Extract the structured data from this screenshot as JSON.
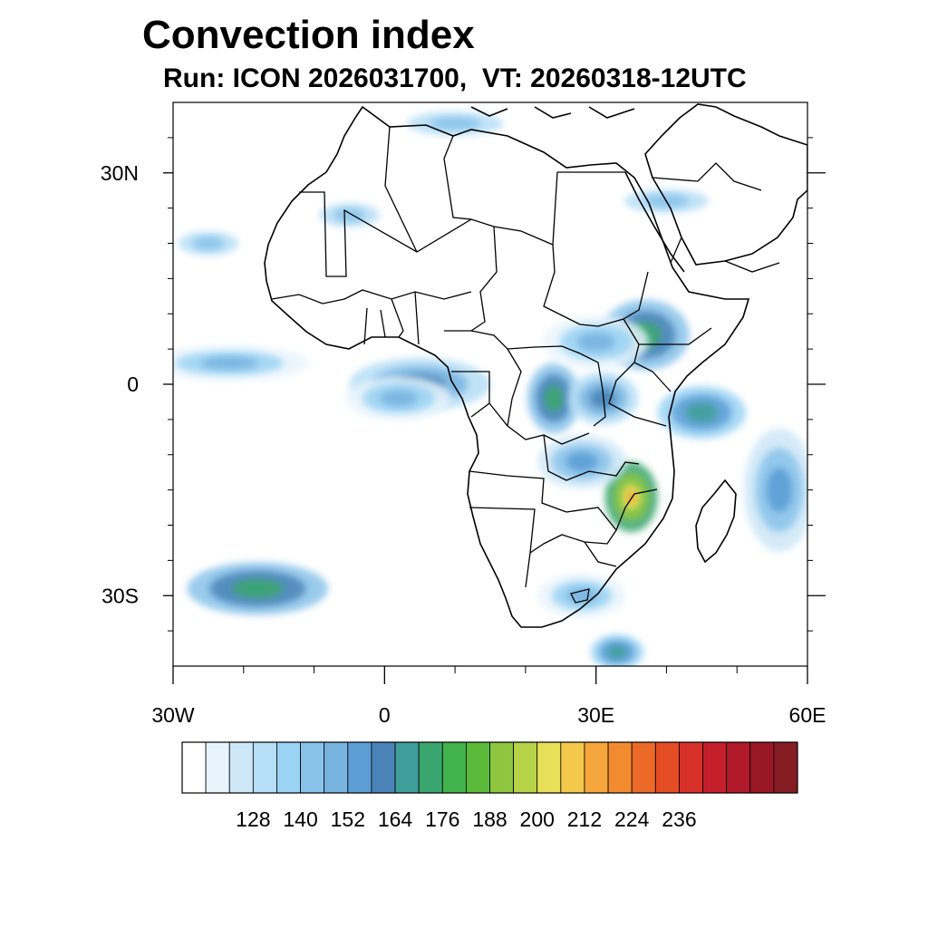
{
  "title": "Convection index",
  "subtitle": "Run: ICON 2026031700,  VT: 20260318-12UTC",
  "map": {
    "lon_range": [
      -30,
      60
    ],
    "lat_range": [
      -40,
      40
    ],
    "lat_ticks": [
      {
        "lat": 30,
        "label": "30N"
      },
      {
        "lat": 0,
        "label": "0"
      },
      {
        "lat": -30,
        "label": "30S"
      }
    ],
    "lon_ticks": [
      {
        "lon": -30,
        "label": "30W"
      },
      {
        "lon": 0,
        "label": "0"
      },
      {
        "lon": 30,
        "label": "30E"
      },
      {
        "lon": 60,
        "label": "60E"
      }
    ],
    "field_regions": [
      {
        "name": "equatorial-west-africa",
        "lon": 5,
        "lat": 0,
        "rx": 8,
        "ry": 3,
        "level": 160
      },
      {
        "name": "gulf-of-guinea",
        "lon": 2,
        "lat": -2,
        "rx": 6,
        "ry": 2.5,
        "level": 150
      },
      {
        "name": "central-congo",
        "lon": 24,
        "lat": -2,
        "rx": 3,
        "ry": 4,
        "level": 170
      },
      {
        "name": "lake-victoria",
        "lon": 31,
        "lat": -2,
        "rx": 4,
        "ry": 3,
        "level": 160
      },
      {
        "name": "ethiopia",
        "lon": 37,
        "lat": 7,
        "rx": 5,
        "ry": 4,
        "level": 170
      },
      {
        "name": "south-sudan",
        "lon": 30,
        "lat": 6,
        "rx": 6,
        "ry": 3,
        "level": 150
      },
      {
        "name": "mozambique-malawi",
        "lon": 35,
        "lat": -16,
        "rx": 3,
        "ry": 4,
        "level": 200
      },
      {
        "name": "zambia",
        "lon": 28,
        "lat": -11,
        "rx": 5,
        "ry": 3,
        "level": 155
      },
      {
        "name": "indian-ocean-east",
        "lon": 45,
        "lat": -4,
        "rx": 5,
        "ry": 3,
        "level": 165
      },
      {
        "name": "south-atlantic",
        "lon": -18,
        "lat": -29,
        "rx": 8,
        "ry": 3,
        "level": 175
      },
      {
        "name": "tropical-atlantic",
        "lon": -22,
        "lat": 3,
        "rx": 9,
        "ry": 2,
        "level": 150
      },
      {
        "name": "saharan-north",
        "lon": -5,
        "lat": 24,
        "rx": 5,
        "ry": 2,
        "level": 140
      },
      {
        "name": "red-sea-arabia",
        "lon": 40,
        "lat": 26,
        "rx": 7,
        "ry": 2,
        "level": 145
      },
      {
        "name": "madagascar-east",
        "lon": 56,
        "lat": -15,
        "rx": 4,
        "ry": 7,
        "level": 155
      },
      {
        "name": "south-africa",
        "lon": 28,
        "lat": -30,
        "rx": 5,
        "ry": 2.5,
        "level": 150
      },
      {
        "name": "mozambique-channel-south",
        "lon": 33,
        "lat": -38,
        "rx": 3,
        "ry": 2,
        "level": 165
      },
      {
        "name": "atlantic-north",
        "lon": -25,
        "lat": 20,
        "rx": 5,
        "ry": 2,
        "level": 140
      },
      {
        "name": "mediterranean",
        "lon": 10,
        "lat": 37,
        "rx": 8,
        "ry": 2,
        "level": 140
      }
    ]
  },
  "colorbar": {
    "labels": [
      "128",
      "140",
      "152",
      "164",
      "176",
      "188",
      "200",
      "212",
      "224",
      "236"
    ],
    "colors": [
      "#ffffff",
      "#e8f4fc",
      "#cde7f7",
      "#b6def6",
      "#9ad3f4",
      "#89c3ea",
      "#78b4e0",
      "#5c9ed5",
      "#4a84b8",
      "#3f9e9a",
      "#3aa66f",
      "#43b34d",
      "#5cba3b",
      "#8ec63f",
      "#b6d247",
      "#e8e059",
      "#f4c84a",
      "#f5a63c",
      "#f28b30",
      "#ec6a28",
      "#e44c24",
      "#d8312a",
      "#c61f2c",
      "#b01a2a",
      "#9a1826",
      "#861d22"
    ]
  }
}
